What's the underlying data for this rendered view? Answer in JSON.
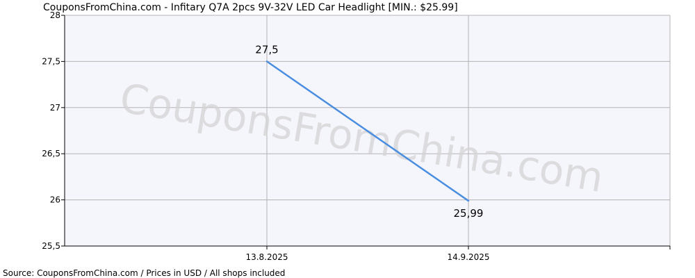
{
  "title": "CouponsFromChina.com - Infitary Q7A 2pcs 9V-32V LED Car Headlight [MIN.: $25.99]",
  "source": "Source: CouponsFromChina.com / Prices in USD / All shops included",
  "watermark": "CouponsFromChina.com",
  "colors": {
    "line": "#4a8ee0",
    "plot_background": "#f5f5fc",
    "grid": "#b4b4b4",
    "axis": "#000000"
  },
  "chart_data": {
    "type": "line",
    "title": "CouponsFromChina.com - Infitary Q7A 2pcs 9V-32V LED Car Headlight [MIN.: $25.99]",
    "xlabel": "",
    "ylabel": "",
    "categories": [
      "13.8.2025",
      "14.9.2025"
    ],
    "series": [
      {
        "values": [
          27.5,
          25.99
        ],
        "labels": [
          "27,5",
          "25,99"
        ]
      }
    ],
    "ylim": [
      25.5,
      28
    ],
    "y_ticks": [
      25.5,
      26,
      26.5,
      27,
      27.5,
      28
    ],
    "y_tick_labels": [
      "25,5",
      "26",
      "26,5",
      "27",
      "27,5",
      "28"
    ],
    "grid": true,
    "legend": "none"
  }
}
